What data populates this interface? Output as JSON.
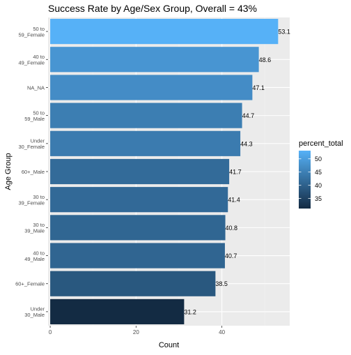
{
  "chart_data": {
    "type": "bar",
    "orientation": "horizontal",
    "title": "Success Rate by Age/Sex Group, Overall = 43%",
    "xlabel": "Count",
    "ylabel": "Age Group",
    "categories": [
      "50 to\n59_Female",
      "40 to\n49_Female",
      "NA_NA",
      "50 to\n59_Male",
      "Under\n30_Female",
      "60+_Male",
      "30 to\n39_Female",
      "30 to\n39_Male",
      "40 to\n49_Male",
      "60+_Female",
      "Under\n30_Male"
    ],
    "values": [
      53.1,
      48.6,
      47.1,
      44.7,
      44.3,
      41.7,
      41.4,
      40.8,
      40.7,
      38.5,
      31.2
    ],
    "data_labels": [
      "53.1",
      "48.6",
      "47.1",
      "44.7",
      "44.3",
      "41.7",
      "41.4",
      "40.8",
      "40.7",
      "38.5",
      "31.2"
    ],
    "xlim": [
      -0.5,
      55.8
    ],
    "xticks": [
      0,
      20,
      40
    ],
    "xtick_labels": [
      "0",
      "20",
      "40"
    ],
    "grid": true,
    "legend": {
      "title": "percent_total",
      "placement": "right",
      "range": [
        31.2,
        53.1
      ],
      "ticks": [
        35,
        40,
        45,
        50
      ],
      "tick_labels": [
        "35",
        "40",
        "45",
        "50"
      ],
      "color_low": "#132b43",
      "color_high": "#56b1f7"
    },
    "colors": {
      "panel_background": "#ebebeb",
      "grid_major": "#ffffff",
      "grid_minor": "#f2f2f2",
      "axis_text": "#4d4d4d"
    }
  }
}
